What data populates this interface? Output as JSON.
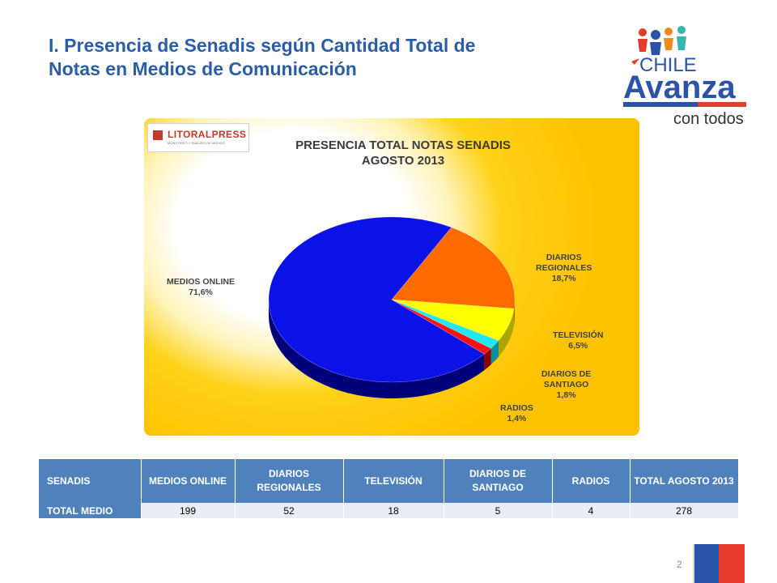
{
  "page": {
    "title_line1": "I. Presencia de Senadis según Cantidad Total de",
    "title_line2": "Notas en Medios de Comunicación",
    "page_number": "2"
  },
  "logo": {
    "chile": "CHILE",
    "avanza": "Avanza",
    "tagline": "con todos"
  },
  "brand": {
    "name": "LITORALPRESS",
    "sub": "MONITOREO Y ANÁLISIS DE MEDIOS"
  },
  "chart_data": {
    "type": "pie",
    "title_line1": "PRESENCIA TOTAL NOTAS SENADIS",
    "title_line2": "AGOSTO 2013",
    "slices": [
      {
        "name": "MEDIOS ONLINE",
        "pct": 71.6,
        "pct_label": "71,6%",
        "color": "#0a12e8",
        "side": "#00007a"
      },
      {
        "name": "DIARIOS REGIONALES",
        "pct": 18.7,
        "pct_label": "18,7%",
        "color": "#ff6a00",
        "side": "#b84300"
      },
      {
        "name": "TELEVISIÓN",
        "pct": 6.5,
        "pct_label": "6,5%",
        "color": "#ffff00",
        "side": "#a8a800"
      },
      {
        "name": "DIARIOS DE SANTIAGO",
        "pct": 1.8,
        "pct_label": "1,8%",
        "color": "#22e6f2",
        "side": "#0d8f98"
      },
      {
        "name": "RADIOS",
        "pct": 1.4,
        "pct_label": "1,4%",
        "color": "#ff1010",
        "side": "#8a0000"
      }
    ],
    "labels": [
      {
        "line1": "MEDIOS ONLINE",
        "line2": "71,6%"
      },
      {
        "line1": "DIARIOS",
        "line2": "REGIONALES",
        "line3": "18,7%"
      },
      {
        "line1": "TELEVISIÓN",
        "line2": "6,5%"
      },
      {
        "line1": "DIARIOS DE",
        "line2": "SANTIAGO",
        "line3": "1,8%"
      },
      {
        "line1": "RADIOS",
        "line2": "1,4%"
      }
    ]
  },
  "table": {
    "headers": [
      "SENADIS",
      "MEDIOS ONLINE",
      "DIARIOS REGIONALES",
      "TELEVISIÓN",
      "DIARIOS DE SANTIAGO",
      "RADIOS",
      "TOTAL AGOSTO 2013"
    ],
    "row_label": "TOTAL MEDIO",
    "values": [
      "199",
      "52",
      "18",
      "5",
      "4",
      "278"
    ]
  }
}
